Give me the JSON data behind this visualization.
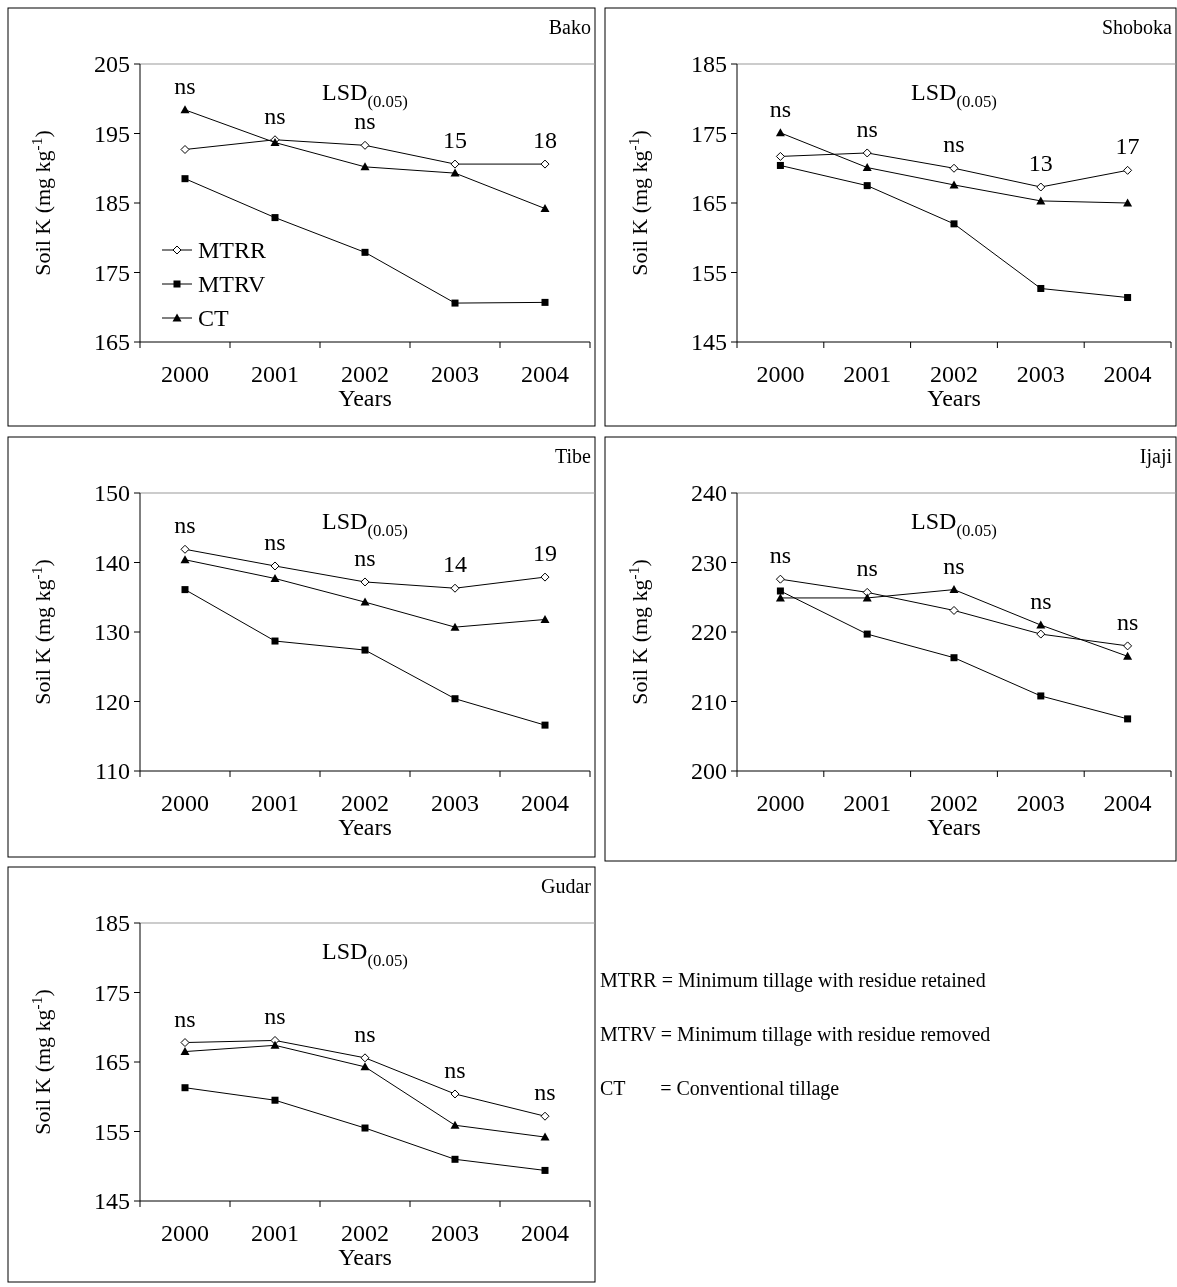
{
  "chart_data": [
    {
      "type": "line",
      "title": "Bako",
      "xlabel": "Years",
      "ylabel": "Soil K (mg kg$^{-1}$)",
      "categories": [
        "2000",
        "2001",
        "2002",
        "2003",
        "2004"
      ],
      "ylim": [
        165,
        205
      ],
      "yticks": [
        165,
        175,
        185,
        195,
        205
      ],
      "grid": false,
      "legend": "bottom left",
      "series": [
        {
          "name": "MTRR",
          "color": "#000000",
          "marker": "diamond",
          "values": [
            192.7,
            194.1,
            193.3,
            190.6,
            190.6
          ]
        },
        {
          "name": "MTRV",
          "color": "#000000",
          "marker": "square",
          "values": [
            188.5,
            182.9,
            177.9,
            170.6,
            170.7
          ]
        },
        {
          "name": "CT",
          "color": "#000000",
          "marker": "triangle",
          "values": [
            198.4,
            193.7,
            190.2,
            189.3,
            184.2
          ]
        }
      ],
      "annotations": [
        "LSD$_{(0.05)}$",
        "ns",
        "ns",
        "ns",
        "15",
        "18"
      ]
    },
    {
      "type": "line",
      "title": "Shoboka",
      "xlabel": "Years",
      "ylabel": "Soil K (mg kg$^{-1}$)",
      "categories": [
        "2000",
        "2001",
        "2002",
        "2003",
        "2004"
      ],
      "ylim": [
        145,
        185
      ],
      "yticks": [
        145,
        155,
        165,
        175,
        185
      ],
      "grid": false,
      "legend": false,
      "series": [
        {
          "color": "#000000",
          "marker": "diamond",
          "values": [
            171.7,
            172.2,
            170.0,
            167.3,
            169.7
          ]
        },
        {
          "color": "#000000",
          "marker": "square",
          "values": [
            170.4,
            167.5,
            162.0,
            152.7,
            151.4
          ]
        },
        {
          "color": "#000000",
          "marker": "triangle",
          "values": [
            175.1,
            170.1,
            167.6,
            165.3,
            165.0
          ]
        }
      ],
      "annotations": [
        "LSD$_{(0.05)}$",
        "ns",
        "ns",
        "ns",
        "13",
        "17"
      ]
    },
    {
      "type": "line",
      "title": "Tibe",
      "xlabel": "Years",
      "ylabel": "Soil K (mg kg$^{-1}$)",
      "categories": [
        "2000",
        "2001",
        "2002",
        "2003",
        "2004"
      ],
      "ylim": [
        110,
        150
      ],
      "yticks": [
        110,
        120,
        130,
        140,
        150
      ],
      "grid": false,
      "legend": false,
      "series": [
        {
          "color": "#000000",
          "marker": "diamond",
          "values": [
            141.9,
            139.5,
            137.2,
            136.3,
            137.9
          ]
        },
        {
          "color": "#000000",
          "marker": "square",
          "values": [
            136.1,
            128.7,
            127.4,
            120.4,
            116.6
          ]
        },
        {
          "color": "#000000",
          "marker": "triangle",
          "values": [
            140.4,
            137.7,
            134.3,
            130.7,
            131.8
          ]
        }
      ],
      "annotations": [
        "LSD$_{(0.05)}$",
        "ns",
        "ns",
        "ns",
        "14",
        "19"
      ]
    },
    {
      "type": "line",
      "title": "Ijaji",
      "xlabel": "Years",
      "ylabel": "Soil K (mg kg$^{-1}$)",
      "categories": [
        "2000",
        "2001",
        "2002",
        "2003",
        "2004"
      ],
      "ylim": [
        200,
        240
      ],
      "yticks": [
        200,
        210,
        220,
        230,
        240
      ],
      "grid": false,
      "legend": false,
      "series": [
        {
          "color": "#000000",
          "marker": "diamond",
          "values": [
            227.6,
            225.7,
            223.1,
            219.7,
            218.0
          ]
        },
        {
          "color": "#000000",
          "marker": "square",
          "values": [
            225.9,
            219.7,
            216.3,
            210.8,
            207.5
          ]
        },
        {
          "color": "#000000",
          "marker": "triangle",
          "values": [
            224.9,
            224.9,
            226.1,
            221.0,
            216.5
          ]
        }
      ],
      "annotations": [
        "LSD$_{(0.05)}$",
        "ns",
        "ns",
        "ns",
        "ns",
        "ns"
      ]
    },
    {
      "type": "line",
      "title": "Gudar",
      "xlabel": "Years",
      "ylabel": "Soil K (mg kg$^{-1}$)",
      "categories": [
        "2000",
        "2001",
        "2002",
        "2003",
        "2004"
      ],
      "ylim": [
        145,
        185
      ],
      "yticks": [
        145,
        155,
        165,
        175,
        185
      ],
      "grid": false,
      "legend": false,
      "series": [
        {
          "color": "#000000",
          "marker": "diamond",
          "values": [
            167.8,
            168.1,
            165.6,
            160.4,
            157.2
          ]
        },
        {
          "color": "#000000",
          "marker": "square",
          "values": [
            161.3,
            159.5,
            155.5,
            151.0,
            149.4
          ]
        },
        {
          "color": "#000000",
          "marker": "triangle",
          "values": [
            166.5,
            167.4,
            164.3,
            155.9,
            154.2
          ]
        }
      ],
      "annotations": [
        "LSD$_{(0.05)}$",
        "ns",
        "ns",
        "ns",
        "ns",
        "ns"
      ]
    },
    {
      "type": "other",
      "annotations": [
        "MTRR = Minimum tillage with residue retained",
        "MTRV = Minimum tillage with residue removed",
        "CT       = Conventional tillage"
      ]
    }
  ]
}
